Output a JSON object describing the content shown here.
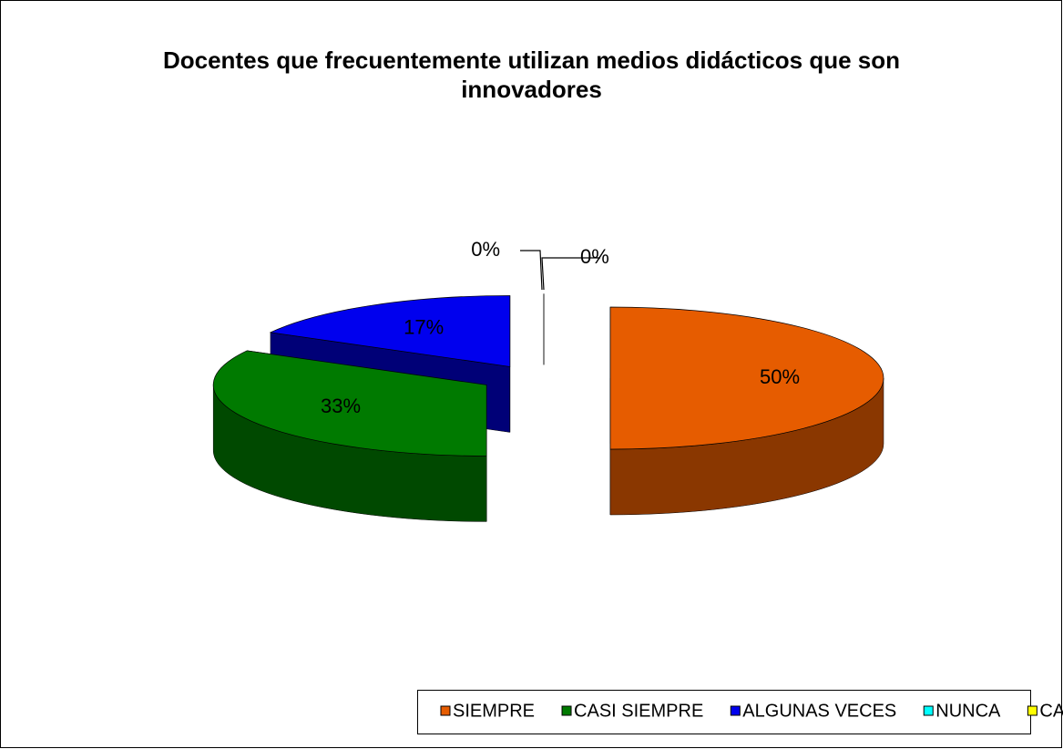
{
  "chart_data": {
    "type": "pie",
    "title": "Docentes que frecuentemente utilizan medios didácticos que son innovadores",
    "categories": [
      "SIEMPRE",
      "CASI SIEMPRE",
      "ALGUNAS VECES",
      "NUNCA",
      "CASI NUNCA"
    ],
    "values": [
      50,
      33,
      17,
      0,
      0
    ],
    "value_labels": [
      "50%",
      "33%",
      "17%",
      "0%",
      "0%"
    ],
    "colors": [
      "#e65c00",
      "#007a00",
      "#0000ee",
      "#00ffff",
      "#ffff00"
    ],
    "legend": "bottom"
  }
}
